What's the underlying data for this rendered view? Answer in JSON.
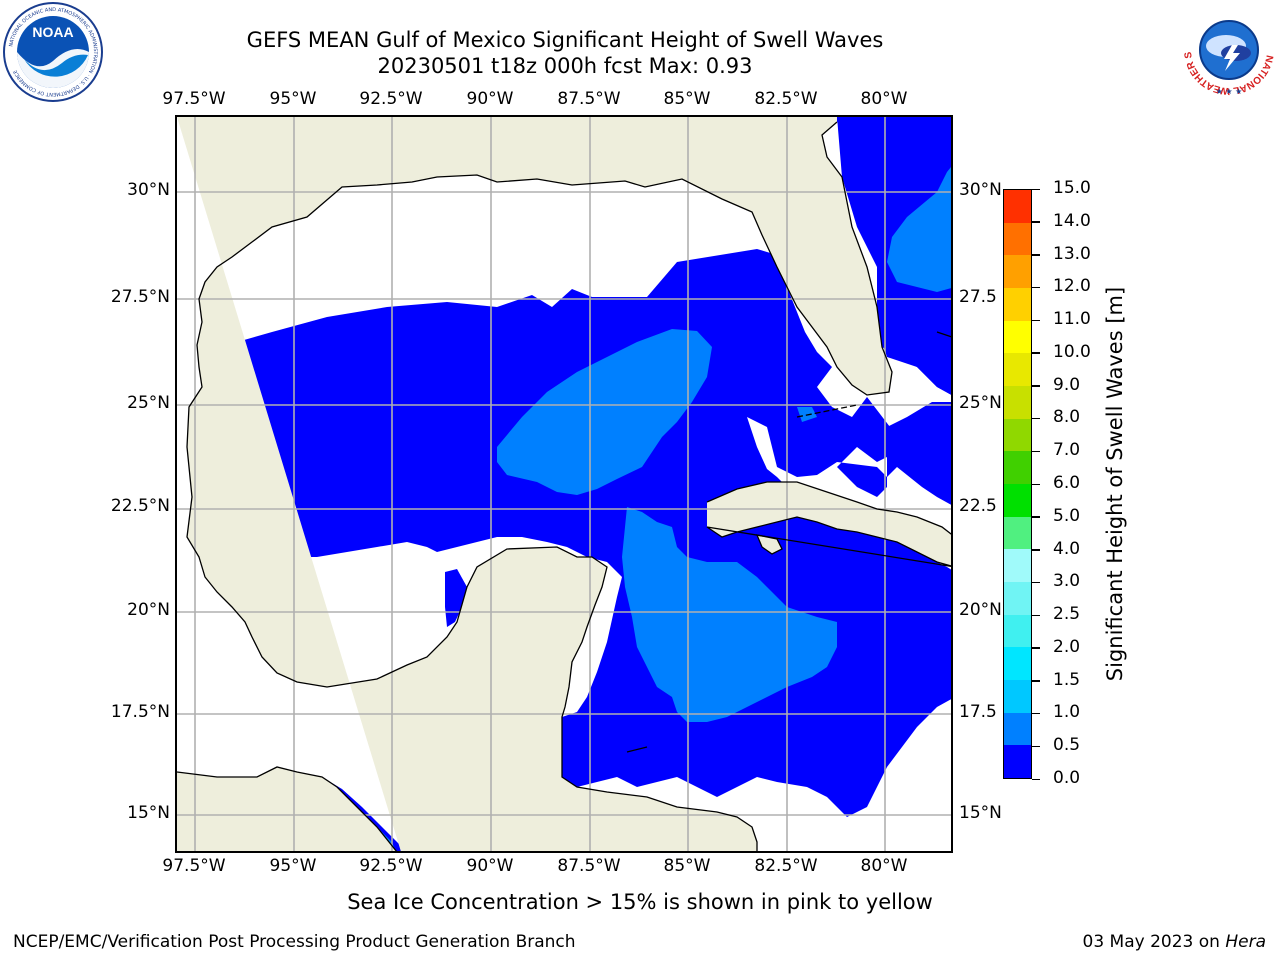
{
  "header": {
    "title_line1": "GEFS MEAN Gulf of Mexico Significant Height of Swell Waves",
    "title_line2": "20230501 t18z 000h fcst   Max: 0.93"
  },
  "logos": {
    "noaa_text": "NOAA",
    "noaa_ring_text": "NATIONAL OCEANIC AND ATMOSPHERIC ADMINISTRATION · U.S. DEPARTMENT OF COMMERCE",
    "nws_ring_text": "NATIONAL WEATHER SERVICE"
  },
  "map": {
    "lon_labels": [
      "97.5°W",
      "95°W",
      "92.5°W",
      "90°W",
      "87.5°W",
      "85°W",
      "82.5°W",
      "80°W"
    ],
    "lat_labels": [
      "30°N",
      "27.5°N",
      "25°N",
      "22.5°N",
      "20°N",
      "17.5°N",
      "15°N"
    ],
    "lat_labels_right": [
      "30°N",
      "27.5",
      "25°N",
      "22.5",
      "20°N",
      "17.5",
      "15°N"
    ],
    "colors": {
      "land": "#eeeedc",
      "grid": "#b0b0b0",
      "coast": "#000000"
    }
  },
  "colorbar": {
    "label": "Significant Height of Swell Waves [m]",
    "ticks": [
      "0.0",
      "0.5",
      "1.0",
      "1.5",
      "2.0",
      "2.5",
      "3.0",
      "4.0",
      "5.0",
      "6.0",
      "7.0",
      "8.0",
      "9.0",
      "10.0",
      "11.0",
      "12.0",
      "13.0",
      "14.0",
      "15.0"
    ],
    "colors": [
      "#0000ff",
      "#0080ff",
      "#00c8ff",
      "#00e6ff",
      "#40f0f0",
      "#70f4f4",
      "#a0fafa",
      "#50f080",
      "#00e000",
      "#40d000",
      "#90d800",
      "#c8e000",
      "#e8e800",
      "#ffff00",
      "#ffd000",
      "#ffa000",
      "#ff7000",
      "#ff3000",
      "#ff0000"
    ]
  },
  "chart_data": {
    "type": "heatmap",
    "title": "GEFS MEAN Gulf of Mexico Significant Height of Swell Waves",
    "subtitle": "20230501 t18z 000h fcst   Max: 0.93",
    "max_value": 0.93,
    "units": "m",
    "xlim": [
      "98°W",
      "79°W"
    ],
    "ylim": [
      "14°N",
      "32°N"
    ],
    "levels": [
      0.0,
      0.5,
      1.0,
      1.5,
      2.0,
      2.5,
      3.0,
      4.0,
      5.0,
      6.0,
      7.0,
      8.0,
      9.0,
      10.0,
      11.0,
      12.0,
      13.0,
      14.0,
      15.0
    ]
  },
  "note": "Sea Ice Concentration > 15% is shown in pink to yellow",
  "footer": {
    "left": "NCEP/EMC/Verification Post Processing Product Generation Branch",
    "right_date": "03 May 2023 on ",
    "right_machine": "Hera"
  }
}
